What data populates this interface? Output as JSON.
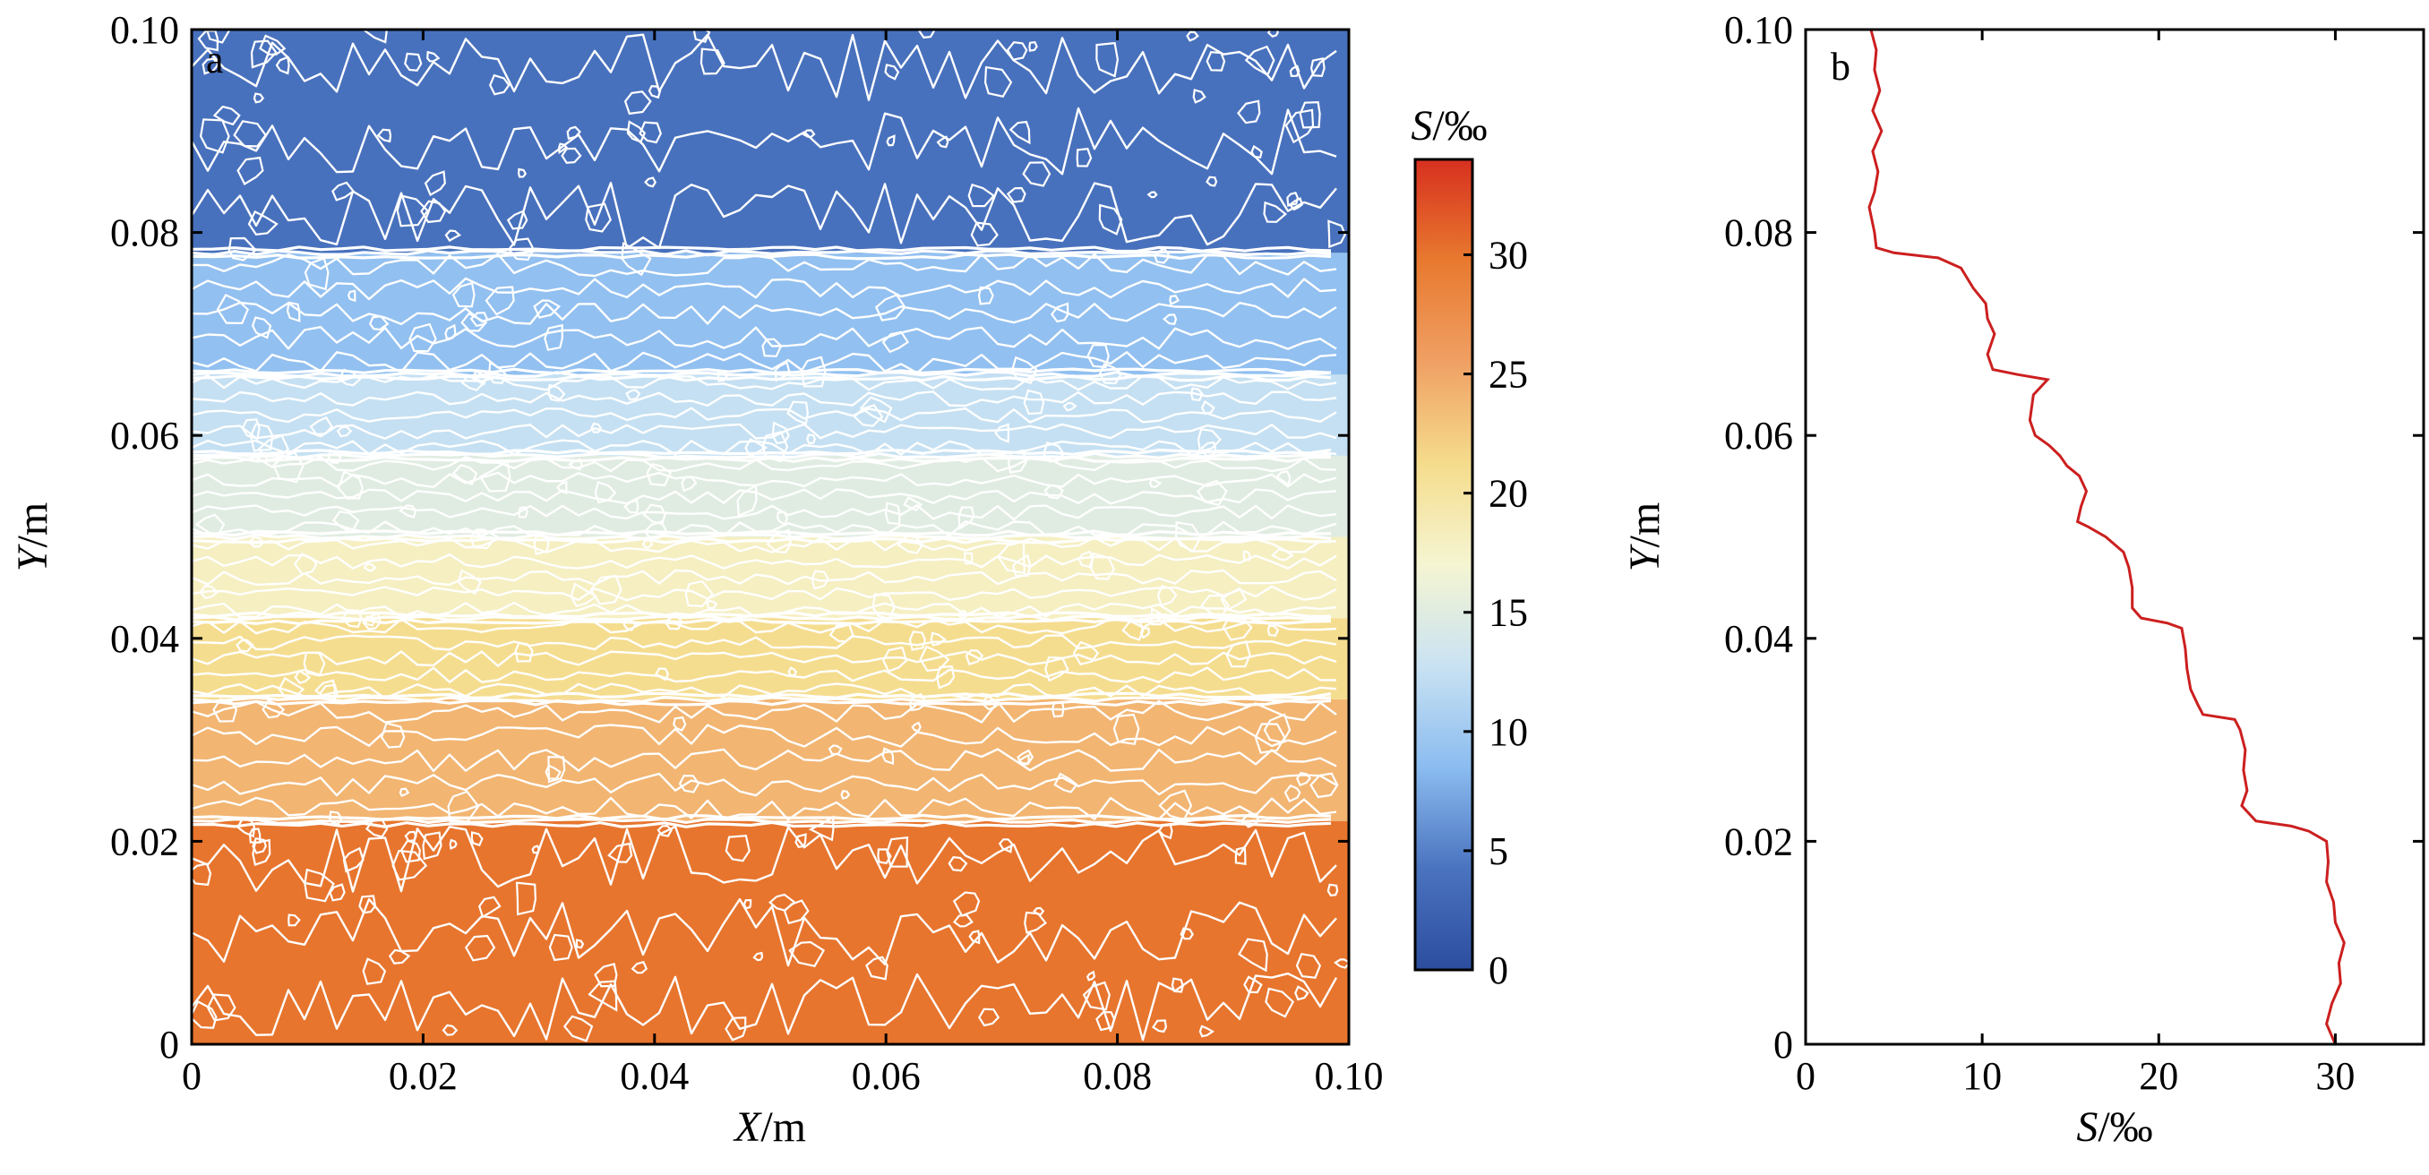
{
  "chart_data": [
    {
      "type": "heatmap",
      "panel_label": "a",
      "xlabel_var": "X",
      "xlabel_unit": "/m",
      "ylabel_var": "Y",
      "ylabel_unit": "/m",
      "xlim": [
        0,
        0.1
      ],
      "ylim": [
        0,
        0.1
      ],
      "x_ticks": [
        "0",
        "0.02",
        "0.04",
        "0.06",
        "0.08",
        "0.10"
      ],
      "y_ticks": [
        "0",
        "0.02",
        "0.04",
        "0.06",
        "0.08",
        "0.10"
      ],
      "colorbar": {
        "title_var": "S",
        "title_unit": "/‰",
        "range": [
          0,
          34
        ],
        "ticks": [
          "0",
          "5",
          "10",
          "15",
          "20",
          "25",
          "30"
        ],
        "colormap": [
          "#2c4d9e",
          "#4a73bf",
          "#8bbcf0",
          "#c9e2f2",
          "#f5f5d2",
          "#f5dc8c",
          "#f0a064",
          "#e8792f",
          "#d7301f"
        ]
      },
      "contour_color": "#ffffff",
      "layers": [
        {
          "y_range": [
            0.0,
            0.022
          ],
          "S": 30.0
        },
        {
          "y_range": [
            0.022,
            0.034
          ],
          "S": 24.0
        },
        {
          "y_range": [
            0.034,
            0.042
          ],
          "S": 21.0
        },
        {
          "y_range": [
            0.042,
            0.05
          ],
          "S": 18.0
        },
        {
          "y_range": [
            0.05,
            0.058
          ],
          "S": 15.0
        },
        {
          "y_range": [
            0.058,
            0.066
          ],
          "S": 12.5
        },
        {
          "y_range": [
            0.066,
            0.078
          ],
          "S": 9.0
        },
        {
          "y_range": [
            0.078,
            0.1
          ],
          "S": 4.0
        }
      ]
    },
    {
      "type": "line",
      "panel_label": "b",
      "xlabel_var": "S",
      "xlabel_unit": "/‰",
      "ylabel_var": "Y",
      "ylabel_unit": "/m",
      "xlim": [
        0,
        35
      ],
      "ylim": [
        0,
        0.1
      ],
      "x_ticks": [
        "0",
        "10",
        "20",
        "30"
      ],
      "y_ticks": [
        "0",
        "0.02",
        "0.04",
        "0.06",
        "0.08",
        "0.10"
      ],
      "line_color": "#cc1f1f",
      "series": [
        {
          "points": [
            [
              30.0,
              0.0
            ],
            [
              29.5,
              0.002
            ],
            [
              29.8,
              0.004
            ],
            [
              30.3,
              0.006
            ],
            [
              30.2,
              0.008
            ],
            [
              30.5,
              0.01
            ],
            [
              30.0,
              0.012
            ],
            [
              29.9,
              0.014
            ],
            [
              29.5,
              0.016
            ],
            [
              29.6,
              0.018
            ],
            [
              29.5,
              0.02
            ],
            [
              28.5,
              0.021
            ],
            [
              27.5,
              0.0215
            ],
            [
              25.5,
              0.022
            ],
            [
              24.7,
              0.0235
            ],
            [
              25.0,
              0.025
            ],
            [
              24.8,
              0.027
            ],
            [
              24.9,
              0.029
            ],
            [
              24.6,
              0.031
            ],
            [
              24.3,
              0.032
            ],
            [
              22.5,
              0.0325
            ],
            [
              22.2,
              0.0335
            ],
            [
              21.8,
              0.035
            ],
            [
              21.6,
              0.037
            ],
            [
              21.5,
              0.039
            ],
            [
              21.3,
              0.041
            ],
            [
              20.5,
              0.0415
            ],
            [
              19.0,
              0.042
            ],
            [
              18.5,
              0.043
            ],
            [
              18.5,
              0.045
            ],
            [
              18.3,
              0.047
            ],
            [
              18.0,
              0.0485
            ],
            [
              17.0,
              0.05
            ],
            [
              16.0,
              0.051
            ],
            [
              15.4,
              0.0515
            ],
            [
              15.6,
              0.053
            ],
            [
              15.9,
              0.0545
            ],
            [
              15.5,
              0.056
            ],
            [
              14.8,
              0.057
            ],
            [
              14.4,
              0.058
            ],
            [
              13.8,
              0.059
            ],
            [
              13.0,
              0.06
            ],
            [
              12.7,
              0.0615
            ],
            [
              12.9,
              0.064
            ],
            [
              13.7,
              0.0655
            ],
            [
              12.0,
              0.066
            ],
            [
              10.6,
              0.0665
            ],
            [
              10.3,
              0.068
            ],
            [
              10.7,
              0.07
            ],
            [
              10.3,
              0.0715
            ],
            [
              10.2,
              0.073
            ],
            [
              9.5,
              0.0745
            ],
            [
              8.8,
              0.0765
            ],
            [
              7.5,
              0.0775
            ],
            [
              5.0,
              0.078
            ],
            [
              4.0,
              0.0785
            ],
            [
              3.9,
              0.08
            ],
            [
              3.6,
              0.0825
            ],
            [
              3.9,
              0.084
            ],
            [
              4.1,
              0.086
            ],
            [
              3.8,
              0.088
            ],
            [
              4.3,
              0.09
            ],
            [
              3.8,
              0.092
            ],
            [
              4.2,
              0.094
            ],
            [
              3.9,
              0.096
            ],
            [
              4.0,
              0.098
            ],
            [
              3.7,
              0.1
            ]
          ]
        }
      ]
    }
  ]
}
